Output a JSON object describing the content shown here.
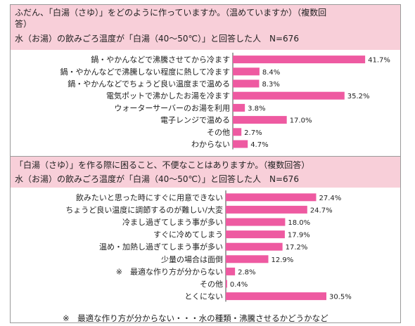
{
  "colors": {
    "bar": "#ee5aa1",
    "question_bg": "#f8cfd9"
  },
  "chart_data": [
    {
      "type": "bar",
      "orientation": "horizontal",
      "question": {
        "line1": "ふだん、「白湯（さゆ）」をどのように作っていますか。（温めていますか）（複数回",
        "line2": "答）",
        "line3": "水（お湯）の飲みごろ温度が「白湯（40～50℃）」と回答した人　N=676"
      },
      "categories": [
        "鍋・やかんなどで沸騰させてから冷ます",
        "鍋・やかんなどで沸騰しない程度に熱して冷ます",
        "鍋・やかんなどでちょうど良い温度まで温める",
        "電気ポットで沸かしたお湯を冷ます",
        "ウォーターサーバーのお湯を利用",
        "電子レンジで温める",
        "その他",
        "わからない"
      ],
      "values": [
        41.7,
        8.4,
        8.3,
        35.2,
        3.8,
        17.0,
        2.7,
        4.7
      ],
      "labels": [
        "41.7%",
        "8.4%",
        "8.3%",
        "35.2%",
        "3.8%",
        "17.0%",
        "2.7%",
        "4.7%"
      ],
      "value_unit": "%",
      "xlim": [
        0,
        45
      ]
    },
    {
      "type": "bar",
      "orientation": "horizontal",
      "question": {
        "line1": "「白湯（さゆ）」を作る際に困ること、不便なことはありますか。（複数回答）",
        "line2": "水（お湯）の飲みごろ温度が「白湯（40～50℃）」と回答した人　N=676"
      },
      "categories": [
        "飲みたいと思った時にすぐに用意できない",
        "ちょうど良い温度に調節するのが難しい/大変",
        "冷まし過ぎてしまう事が多い",
        "すぐに冷めてしまう",
        "温め・加熱し過ぎてしまう事が多い",
        "少量の場合は面倒",
        "※　最適な作り方が分からない",
        "その他",
        "とくにない"
      ],
      "values": [
        27.4,
        24.7,
        18.0,
        17.9,
        17.2,
        12.9,
        2.8,
        0.4,
        30.5
      ],
      "labels": [
        "27.4%",
        "24.7%",
        "18.0%",
        "17.9%",
        "17.2%",
        "12.9%",
        "2.8%",
        "0.4%",
        "30.5%"
      ],
      "value_unit": "%",
      "xlim": [
        0,
        45
      ]
    }
  ],
  "footnote": "※　最適な作り方が分からない・・・水の種類・沸騰させるかどうかなど"
}
